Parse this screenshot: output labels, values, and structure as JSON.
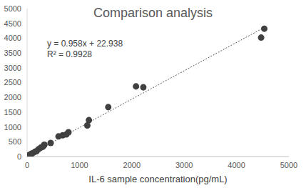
{
  "chart_data": {
    "type": "scatter",
    "title": "Comparison analysis",
    "x_label": "IL-6 sample concentration(pg/mL)",
    "annotations": [
      "y = 0.958x + 22.938",
      "R² = 0.9928"
    ],
    "trendline": {
      "slope": 0.958,
      "intercept": 22.938,
      "line_style": "dotted"
    },
    "x": [
      5,
      15,
      30,
      50,
      80,
      100,
      150,
      180,
      220,
      260,
      300,
      320,
      330,
      450,
      600,
      680,
      750,
      790,
      1150,
      1180,
      1550,
      2080,
      2220,
      4470,
      4530
    ],
    "values": [
      10,
      25,
      40,
      60,
      90,
      110,
      160,
      180,
      250,
      300,
      330,
      380,
      400,
      460,
      680,
      720,
      750,
      820,
      1050,
      1230,
      1670,
      2370,
      2340,
      4020,
      4320
    ],
    "color": "#404040",
    "marker": "circle",
    "xlim": [
      0,
      5000
    ],
    "xticks": [
      0,
      1000,
      2000,
      3000,
      4000,
      5000
    ],
    "ylim": [
      0,
      5000
    ],
    "yticks": [
      0,
      500,
      1000,
      1500,
      2000,
      2500,
      3000,
      3500,
      4000,
      4500,
      5000
    ],
    "grid": false
  }
}
